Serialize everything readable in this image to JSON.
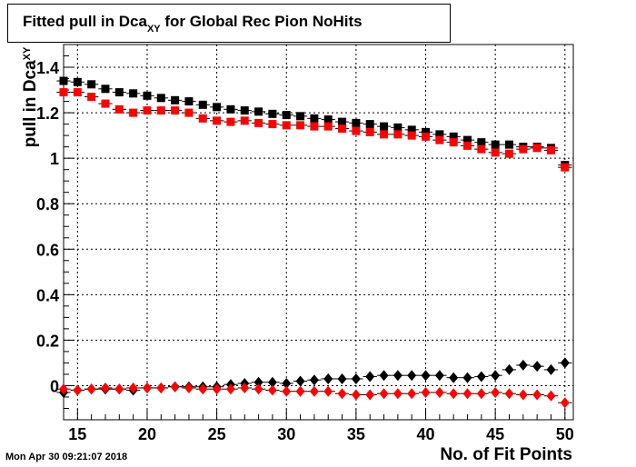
{
  "title": {
    "main": "Fitted pull in Dca",
    "sub": "XY",
    "rest": " for Global Rec Pion NoHits"
  },
  "timestamp": "Mon Apr 30 09:21:07 2018",
  "chart_data": {
    "type": "scatter",
    "xlabel": "No. of Fit Points",
    "ylabel_main": "pull in Dca",
    "ylabel_sub": "XY",
    "xlim": [
      14,
      50.6
    ],
    "ylim": [
      -0.15,
      1.5
    ],
    "x_ticks": [
      15,
      20,
      25,
      30,
      35,
      40,
      45,
      50
    ],
    "y_ticks": [
      0,
      0.2,
      0.4,
      0.6,
      0.8,
      1,
      1.2,
      1.4
    ],
    "y_tick_labels": [
      "0",
      "0.2",
      "0.4",
      "0.6",
      "0.8",
      "1",
      "1.2",
      "1.4"
    ],
    "grid": true,
    "x": [
      14,
      15,
      16,
      17,
      18,
      19,
      20,
      21,
      22,
      23,
      24,
      25,
      26,
      27,
      28,
      29,
      30,
      31,
      32,
      33,
      34,
      35,
      36,
      37,
      38,
      39,
      40,
      41,
      42,
      43,
      44,
      45,
      46,
      47,
      48,
      49,
      50
    ],
    "series": [
      {
        "marker": "square",
        "color": "#000000",
        "values": [
          1.34,
          1.335,
          1.325,
          1.305,
          1.29,
          1.285,
          1.275,
          1.265,
          1.255,
          1.25,
          1.235,
          1.225,
          1.215,
          1.21,
          1.205,
          1.195,
          1.19,
          1.185,
          1.175,
          1.17,
          1.16,
          1.155,
          1.15,
          1.14,
          1.135,
          1.125,
          1.115,
          1.105,
          1.095,
          1.08,
          1.07,
          1.06,
          1.06,
          1.05,
          1.05,
          1.045,
          0.97
        ]
      },
      {
        "marker": "square",
        "color": "#ff0000",
        "values": [
          1.29,
          1.29,
          1.27,
          1.24,
          1.215,
          1.2,
          1.21,
          1.21,
          1.21,
          1.2,
          1.175,
          1.165,
          1.16,
          1.165,
          1.155,
          1.15,
          1.145,
          1.145,
          1.14,
          1.14,
          1.13,
          1.12,
          1.115,
          1.105,
          1.105,
          1.1,
          1.095,
          1.08,
          1.07,
          1.055,
          1.04,
          1.025,
          1.02,
          1.04,
          1.045,
          1.035,
          0.96
        ]
      },
      {
        "marker": "diamond",
        "color": "#000000",
        "values": [
          -0.03,
          -0.02,
          -0.015,
          -0.015,
          -0.015,
          -0.02,
          -0.01,
          -0.01,
          -0.005,
          -0.005,
          -0.005,
          -0.005,
          0.005,
          0.01,
          0.015,
          0.015,
          0.01,
          0.02,
          0.025,
          0.03,
          0.03,
          0.03,
          0.04,
          0.045,
          0.045,
          0.045,
          0.045,
          0.045,
          0.035,
          0.035,
          0.04,
          0.045,
          0.07,
          0.09,
          0.085,
          0.07,
          0.1
        ]
      },
      {
        "marker": "diamond",
        "color": "#ff0000",
        "values": [
          -0.015,
          -0.02,
          -0.015,
          -0.01,
          -0.015,
          -0.01,
          -0.01,
          -0.01,
          -0.005,
          -0.01,
          -0.015,
          -0.015,
          -0.015,
          -0.01,
          -0.015,
          -0.02,
          -0.025,
          -0.025,
          -0.025,
          -0.025,
          -0.035,
          -0.04,
          -0.04,
          -0.035,
          -0.035,
          -0.035,
          -0.03,
          -0.03,
          -0.035,
          -0.035,
          -0.035,
          -0.03,
          -0.035,
          -0.04,
          -0.04,
          -0.045,
          -0.075
        ]
      }
    ]
  }
}
